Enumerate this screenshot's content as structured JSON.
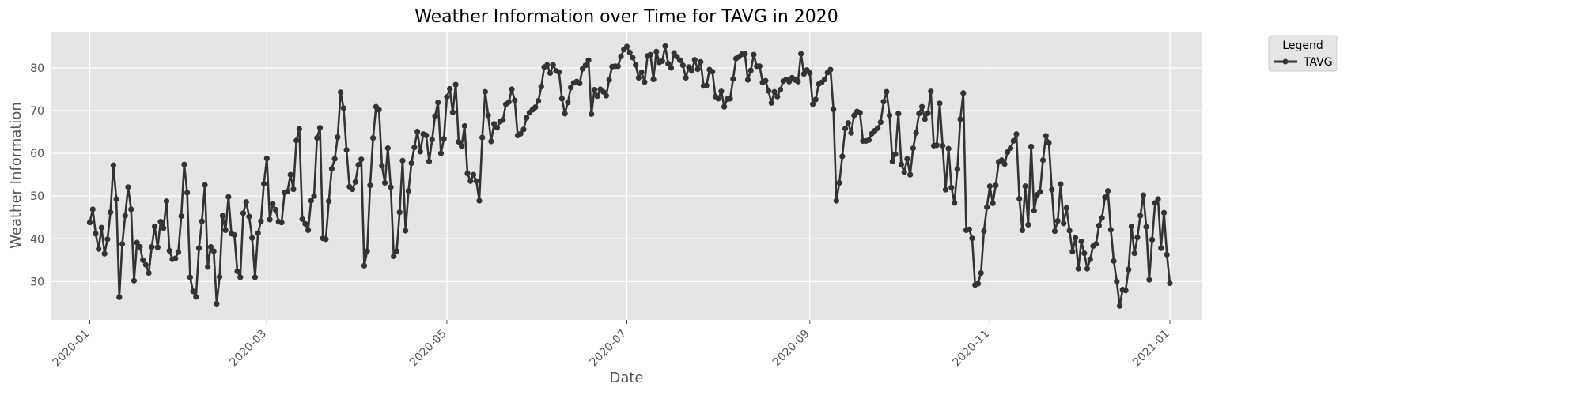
{
  "chart_data": {
    "type": "line",
    "title": "Weather Information over Time for TAVG in 2020",
    "xlabel": "Date",
    "ylabel": "Weather Information",
    "x_ticks": [
      "2020-01",
      "2020-03",
      "2020-05",
      "2020-07",
      "2020-09",
      "2020-11",
      "2021-01"
    ],
    "y_ticks": [
      30,
      40,
      50,
      60,
      70,
      80
    ],
    "xlim": [
      "2019-12-19",
      "2021-01-12"
    ],
    "ylim": [
      21,
      88.5
    ],
    "grid": true,
    "legend": {
      "title": "Legend",
      "placement": "outside-top-right"
    },
    "colors": {
      "plot_bg": "#e5e5e5",
      "grid": "#ffffff",
      "line": "#333333",
      "text": "#555555"
    },
    "series": [
      {
        "name": "TAVG",
        "start_date": "2020-01-01",
        "step_days": 1,
        "values": [
          43.8,
          46.9,
          41.2,
          37.6,
          42.6,
          36.5,
          39.9,
          46.2,
          57.2,
          49.3,
          26.3,
          38.8,
          45.4,
          52.1,
          46.9,
          30.2,
          39.1,
          38.1,
          35.0,
          33.9,
          32.0,
          38.1,
          42.9,
          38.0,
          44.0,
          42.5,
          48.8,
          37.2,
          35.2,
          35.4,
          36.9,
          45.3,
          57.4,
          50.8,
          31.0,
          27.7,
          26.4,
          37.8,
          44.1,
          52.6,
          33.4,
          38.1,
          37.1,
          24.8,
          31.1,
          45.4,
          42.0,
          49.8,
          41.2,
          40.9,
          32.4,
          31.0,
          46.0,
          48.6,
          45.2,
          40.2,
          31.0,
          41.3,
          44.1,
          52.9,
          58.8,
          44.5,
          48.2,
          46.8,
          44.0,
          43.8,
          50.8,
          51.1,
          55.0,
          51.6,
          63.0,
          65.7,
          44.6,
          43.5,
          42.0,
          48.9,
          50.0,
          63.6,
          66.0,
          40.1,
          39.9,
          48.8,
          56.4,
          58.7,
          63.8,
          74.3,
          70.6,
          60.8,
          52.2,
          51.6,
          53.3,
          57.3,
          58.6,
          33.7,
          37.1,
          52.5,
          63.6,
          70.9,
          70.2,
          57.1,
          53.1,
          61.2,
          52.1,
          35.9,
          37.1,
          46.2,
          58.3,
          41.9,
          51.2,
          57.7,
          61.4,
          65.1,
          60.4,
          64.5,
          64.2,
          58.1,
          63.2,
          68.7,
          71.9,
          60.0,
          63.4,
          73.2,
          75.1,
          69.6,
          76.1,
          62.7,
          61.7,
          66.4,
          55.3,
          53.5,
          55.0,
          53.5,
          48.9,
          63.7,
          74.4,
          68.9,
          62.8,
          66.9,
          66.0,
          67.4,
          67.8,
          71.5,
          72.0,
          75.0,
          72.4,
          64.2,
          64.6,
          65.6,
          68.3,
          69.5,
          70.2,
          70.8,
          72.3,
          75.6,
          80.2,
          80.7,
          78.8,
          80.7,
          79.3,
          79.0,
          72.8,
          69.3,
          71.9,
          75.4,
          76.5,
          76.8,
          76.4,
          79.8,
          80.6,
          81.8,
          69.2,
          74.9,
          73.4,
          75.0,
          74.4,
          73.5,
          77.2,
          80.3,
          80.4,
          80.4,
          82.7,
          84.3,
          85.0,
          83.6,
          82.4,
          80.7,
          77.7,
          79.0,
          76.7,
          82.8,
          83.1,
          77.3,
          83.8,
          81.3,
          81.6,
          85.1,
          81.0,
          80.0,
          83.5,
          82.6,
          81.8,
          80.6,
          77.7,
          80.2,
          79.3,
          81.9,
          79.7,
          81.4,
          75.8,
          75.9,
          79.6,
          79.1,
          73.3,
          72.8,
          74.5,
          70.9,
          72.7,
          72.8,
          77.4,
          82.2,
          82.6,
          83.2,
          83.3,
          77.2,
          79.4,
          83.1,
          80.4,
          80.4,
          76.6,
          77.0,
          74.6,
          71.8,
          74.4,
          73.3,
          74.9,
          76.9,
          77.3,
          76.8,
          77.7,
          77.2,
          76.8,
          83.3,
          78.6,
          79.5,
          78.8,
          71.5,
          72.6,
          76.2,
          76.6,
          77.3,
          78.9,
          79.6,
          70.3,
          48.9,
          53.1,
          59.3,
          65.8,
          67.1,
          64.8,
          68.9,
          69.8,
          69.5,
          62.9,
          62.9,
          63.1,
          64.6,
          65.3,
          65.9,
          67.3,
          72.1,
          74.4,
          68.9,
          58.1,
          59.8,
          69.3,
          57.4,
          55.6,
          58.7,
          55.0,
          61.2,
          64.8,
          69.3,
          70.9,
          68.0,
          69.4,
          74.5,
          61.8,
          61.9,
          71.7,
          61.8,
          51.5,
          61.1,
          52.0,
          48.4,
          56.3,
          68.0,
          74.1,
          42.0,
          42.2,
          40.1,
          29.2,
          29.5,
          32.0,
          41.8,
          47.4,
          52.3,
          48.3,
          52.5,
          58.0,
          58.4,
          57.5,
          60.3,
          61.2,
          62.9,
          64.5,
          49.4,
          42.0,
          52.3,
          43.3,
          61.6,
          46.6,
          50.3,
          51.0,
          58.4,
          64.1,
          62.5,
          51.5,
          41.8,
          44.2,
          52.8,
          43.6,
          47.2,
          41.9,
          37.0,
          40.2,
          33.0,
          39.4,
          36.6,
          33.0,
          35.2,
          38.3,
          38.8,
          43.1,
          44.9,
          49.7,
          51.2,
          42.1,
          34.8,
          30.0,
          24.3,
          28.1,
          27.9,
          32.8,
          42.9,
          36.6,
          40.3,
          45.4,
          50.2,
          42.8,
          30.4,
          39.8,
          48.4,
          49.3,
          37.8,
          46.1,
          36.3,
          29.6
        ]
      }
    ]
  }
}
